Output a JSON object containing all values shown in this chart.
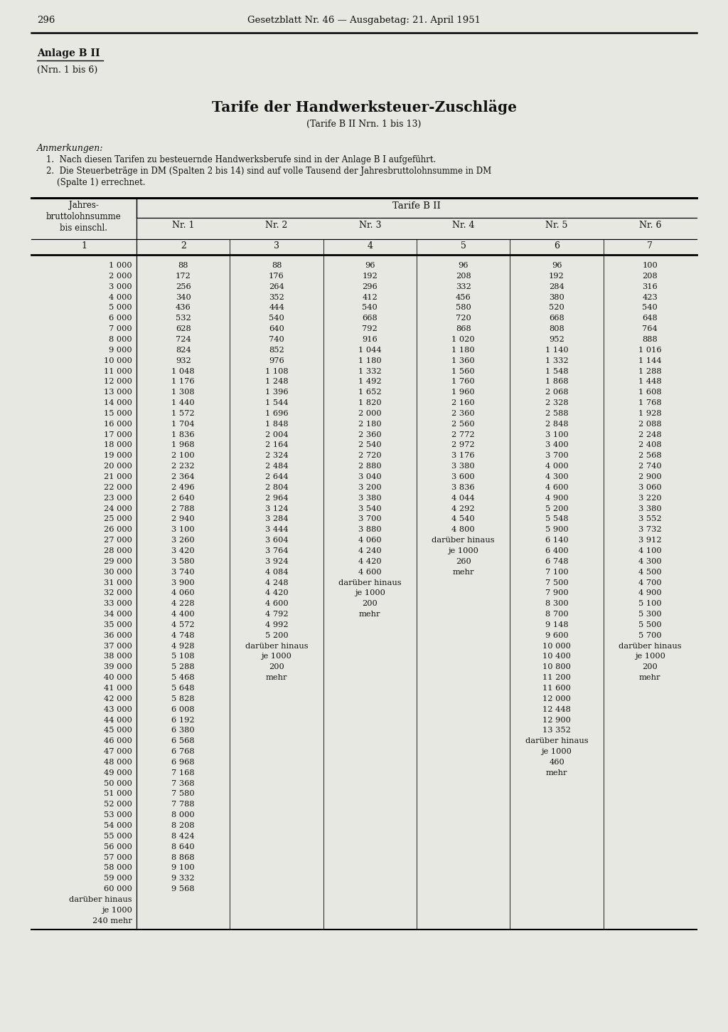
{
  "page_number": "296",
  "header": "Gesetzblatt Nr. 46 — Ausgabetag: 21. April 1951",
  "anlage_title": "Anlage B II",
  "anlage_sub": "(Nrn. 1 bis 6)",
  "main_title": "Tarife der Handwerksteuer-Zuschläge",
  "main_subtitle": "(Tarife B II Nrn. 1 bis 13)",
  "anmerkungen_title": "Anmerkungen:",
  "anmerkung1": "1.  Nach diesen Tarifen zu besteuernde Handwerksberufe sind in der Anlage B I aufgeführt.",
  "anmerkung2a": "2.  Die Steuerbeträge in DM (Spalten 2 bis 14) sind auf volle Tausend der Jahresbruttolohnsumme in DM",
  "anmerkung2b": "    (Spalte 1) errechnet.",
  "col_header_left": "Jahres-\nbruttolohnsumme\nbis einschl.",
  "col_header_group": "Tarife B II",
  "col_headers": [
    "Nr. 1",
    "Nr. 2",
    "Nr. 3",
    "Nr. 4",
    "Nr. 5",
    "Nr. 6"
  ],
  "col_numbers": [
    "1",
    "2",
    "3",
    "4",
    "5",
    "6",
    "7"
  ],
  "rows": [
    [
      "1 000",
      "88",
      "88",
      "96",
      "96",
      "96",
      "100"
    ],
    [
      "2 000",
      "172",
      "176",
      "192",
      "208",
      "192",
      "208"
    ],
    [
      "3 000",
      "256",
      "264",
      "296",
      "332",
      "284",
      "316"
    ],
    [
      "4 000",
      "340",
      "352",
      "412",
      "456",
      "380",
      "423"
    ],
    [
      "5 000",
      "436",
      "444",
      "540",
      "580",
      "520",
      "540"
    ],
    [
      "6 000",
      "532",
      "540",
      "668",
      "720",
      "668",
      "648"
    ],
    [
      "7 000",
      "628",
      "640",
      "792",
      "868",
      "808",
      "764"
    ],
    [
      "8 000",
      "724",
      "740",
      "916",
      "1 020",
      "952",
      "888"
    ],
    [
      "9 000",
      "824",
      "852",
      "1 044",
      "1 180",
      "1 140",
      "1 016"
    ],
    [
      "10 000",
      "932",
      "976",
      "1 180",
      "1 360",
      "1 332",
      "1 144"
    ],
    [
      "11 000",
      "1 048",
      "1 108",
      "1 332",
      "1 560",
      "1 548",
      "1 288"
    ],
    [
      "12 000",
      "1 176",
      "1 248",
      "1 492",
      "1 760",
      "1 868",
      "1 448"
    ],
    [
      "13 000",
      "1 308",
      "1 396",
      "1 652",
      "1 960",
      "2 068",
      "1 608"
    ],
    [
      "14 000",
      "1 440",
      "1 544",
      "1 820",
      "2 160",
      "2 328",
      "1 768"
    ],
    [
      "15 000",
      "1 572",
      "1 696",
      "2 000",
      "2 360",
      "2 588",
      "1 928"
    ],
    [
      "16 000",
      "1 704",
      "1 848",
      "2 180",
      "2 560",
      "2 848",
      "2 088"
    ],
    [
      "17 000",
      "1 836",
      "2 004",
      "2 360",
      "2 772",
      "3 100",
      "2 248"
    ],
    [
      "18 000",
      "1 968",
      "2 164",
      "2 540",
      "2 972",
      "3 400",
      "2 408"
    ],
    [
      "19 000",
      "2 100",
      "2 324",
      "2 720",
      "3 176",
      "3 700",
      "2 568"
    ],
    [
      "20 000",
      "2 232",
      "2 484",
      "2 880",
      "3 380",
      "4 000",
      "2 740"
    ],
    [
      "21 000",
      "2 364",
      "2 644",
      "3 040",
      "3 600",
      "4 300",
      "2 900"
    ],
    [
      "22 000",
      "2 496",
      "2 804",
      "3 200",
      "3 836",
      "4 600",
      "3 060"
    ],
    [
      "23 000",
      "2 640",
      "2 964",
      "3 380",
      "4 044",
      "4 900",
      "3 220"
    ],
    [
      "24 000",
      "2 788",
      "3 124",
      "3 540",
      "4 292",
      "5 200",
      "3 380"
    ],
    [
      "25 000",
      "2 940",
      "3 284",
      "3 700",
      "4 540",
      "5 548",
      "3 552"
    ],
    [
      "26 000",
      "3 100",
      "3 444",
      "3 880",
      "4 800",
      "5 900",
      "3 732"
    ],
    [
      "27 000",
      "3 260",
      "3 604",
      "4 060",
      "darüber hinaus",
      "6 140",
      "3 912"
    ],
    [
      "28 000",
      "3 420",
      "3 764",
      "4 240",
      "je 1000",
      "6 400",
      "4 100"
    ],
    [
      "29 000",
      "3 580",
      "3 924",
      "4 420",
      "260",
      "6 748",
      "4 300"
    ],
    [
      "30 000",
      "3 740",
      "4 084",
      "4 600",
      "mehr",
      "7 100",
      "4 500"
    ],
    [
      "31 000",
      "3 900",
      "4 248",
      "darüber hinaus",
      "",
      "7 500",
      "4 700"
    ],
    [
      "32 000",
      "4 060",
      "4 420",
      "je 1000",
      "",
      "7 900",
      "4 900"
    ],
    [
      "33 000",
      "4 228",
      "4 600",
      "200",
      "",
      "8 300",
      "5 100"
    ],
    [
      "34 000",
      "4 400",
      "4 792",
      "mehr",
      "",
      "8 700",
      "5 300"
    ],
    [
      "35 000",
      "4 572",
      "4 992",
      "",
      "",
      "9 148",
      "5 500"
    ],
    [
      "36 000",
      "4 748",
      "5 200",
      "",
      "",
      "9 600",
      "5 700"
    ],
    [
      "37 000",
      "4 928",
      "darüber hinaus",
      "",
      "",
      "10 000",
      "darüber hinaus"
    ],
    [
      "38 000",
      "5 108",
      "je 1000",
      "",
      "",
      "10 400",
      "je 1000"
    ],
    [
      "39 000",
      "5 288",
      "200",
      "",
      "",
      "10 800",
      "200"
    ],
    [
      "40 000",
      "5 468",
      "mehr",
      "",
      "",
      "11 200",
      "mehr"
    ],
    [
      "41 000",
      "5 648",
      "",
      "",
      "",
      "11 600",
      ""
    ],
    [
      "42 000",
      "5 828",
      "",
      "",
      "",
      "12 000",
      ""
    ],
    [
      "43 000",
      "6 008",
      "",
      "",
      "",
      "12 448",
      ""
    ],
    [
      "44 000",
      "6 192",
      "",
      "",
      "",
      "12 900",
      ""
    ],
    [
      "45 000",
      "6 380",
      "",
      "",
      "",
      "13 352",
      ""
    ],
    [
      "46 000",
      "6 568",
      "",
      "",
      "",
      "darüber hinaus",
      ""
    ],
    [
      "47 000",
      "6 768",
      "",
      "",
      "",
      "je 1000",
      ""
    ],
    [
      "48 000",
      "6 968",
      "",
      "",
      "",
      "460",
      ""
    ],
    [
      "49 000",
      "7 168",
      "",
      "",
      "",
      "mehr",
      ""
    ],
    [
      "50 000",
      "7 368",
      "",
      "",
      "",
      "",
      ""
    ],
    [
      "51 000",
      "7 580",
      "",
      "",
      "",
      "",
      ""
    ],
    [
      "52 000",
      "7 788",
      "",
      "",
      "",
      "",
      ""
    ],
    [
      "53 000",
      "8 000",
      "",
      "",
      "",
      "",
      ""
    ],
    [
      "54 000",
      "8 208",
      "",
      "",
      "",
      "",
      ""
    ],
    [
      "55 000",
      "8 424",
      "",
      "",
      "",
      "",
      ""
    ],
    [
      "56 000",
      "8 640",
      "",
      "",
      "",
      "",
      ""
    ],
    [
      "57 000",
      "8 868",
      "",
      "",
      "",
      "",
      ""
    ],
    [
      "58 000",
      "9 100",
      "",
      "",
      "",
      "",
      ""
    ],
    [
      "59 000",
      "9 332",
      "",
      "",
      "",
      "",
      ""
    ],
    [
      "60 000",
      "9 568",
      "",
      "",
      "",
      "",
      ""
    ],
    [
      "darüber hinaus",
      "",
      "",
      "",
      "",
      "",
      ""
    ],
    [
      "je 1000",
      "",
      "",
      "",
      "",
      "",
      ""
    ],
    [
      "240 mehr",
      "",
      "",
      "",
      "",
      "",
      ""
    ]
  ],
  "bg_color": "#e8e8e3",
  "text_color": "#111111"
}
